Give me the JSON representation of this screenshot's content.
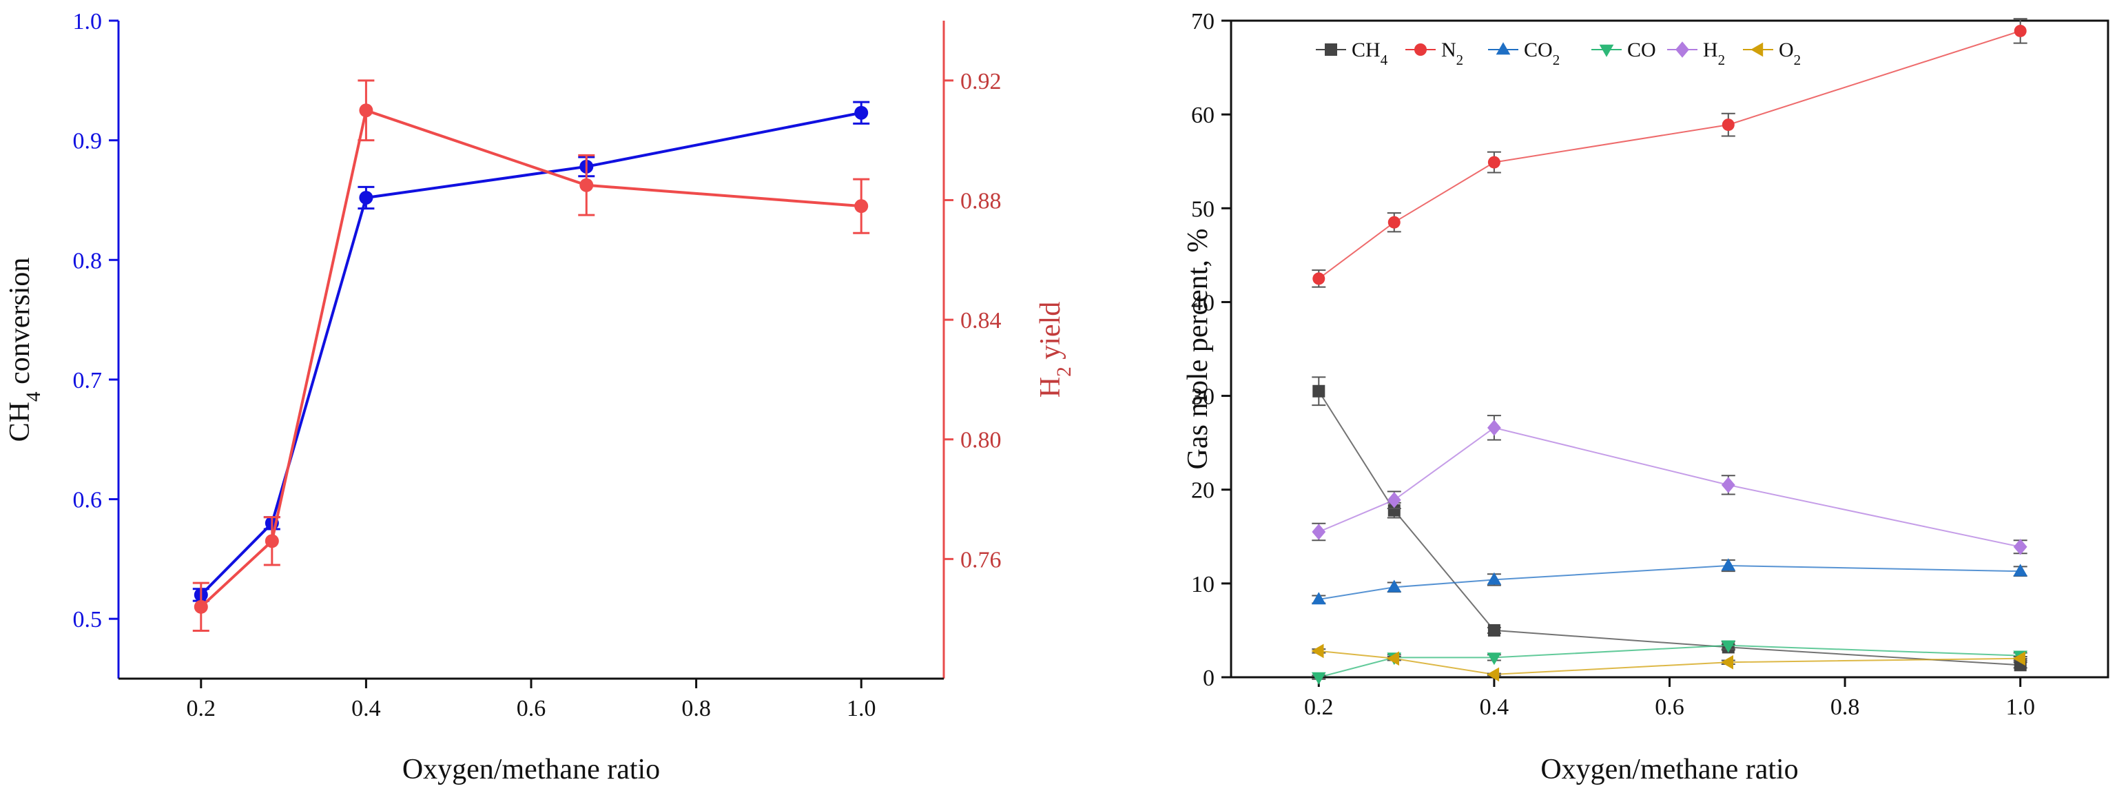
{
  "chart_data": [
    {
      "type": "line",
      "id": "left",
      "x": [
        0.2,
        0.286,
        0.4,
        0.667,
        1.0
      ],
      "xlabel": "Oxygen/methane ratio",
      "xlim": [
        0.1,
        1.1
      ],
      "xticks": [
        0.2,
        0.4,
        0.6,
        0.8,
        1.0
      ],
      "xtick_labels": [
        "0.2",
        "0.4",
        "0.6",
        "0.8",
        "1.0"
      ],
      "left_axis": {
        "label_main": "CH",
        "label_sub": "4",
        "label_rest": " conversion",
        "color": "#1010e0",
        "ylim": [
          0.45,
          1.0
        ],
        "ticks": [
          0.5,
          0.6,
          0.7,
          0.8,
          0.9,
          1.0
        ],
        "tick_labels": [
          "0.5",
          "0.6",
          "0.7",
          "0.8",
          "0.9",
          "1.0"
        ]
      },
      "right_axis": {
        "label_main": "H",
        "label_sub": "2",
        "label_rest": " yield",
        "color": "#c23b3b",
        "ylim": [
          0.72,
          0.94
        ],
        "ticks": [
          0.76,
          0.8,
          0.84,
          0.88,
          0.92
        ],
        "tick_labels": [
          "0.76",
          "0.80",
          "0.84",
          "0.88",
          "0.92"
        ]
      },
      "series": [
        {
          "name": "CH4 conversion",
          "axis": "left",
          "color": "#1010e0",
          "values": [
            0.52,
            0.58,
            0.852,
            0.878,
            0.923
          ],
          "errors": [
            0.005,
            0.005,
            0.009,
            0.008,
            0.009
          ]
        },
        {
          "name": "H2 yield",
          "axis": "right",
          "color": "#ef4b4b",
          "values": [
            0.744,
            0.766,
            0.91,
            0.885,
            0.878
          ],
          "errors": [
            0.008,
            0.008,
            0.01,
            0.01,
            0.009
          ]
        }
      ]
    },
    {
      "type": "line",
      "id": "right",
      "x": [
        0.2,
        0.286,
        0.4,
        0.667,
        1.0
      ],
      "xlabel": "Oxygen/methane ratio",
      "ylabel": "Gas mole percent, %",
      "xlim": [
        0.1,
        1.1
      ],
      "ylim": [
        0,
        70
      ],
      "xticks": [
        0.2,
        0.4,
        0.6,
        0.8,
        1.0
      ],
      "xtick_labels": [
        "0.2",
        "0.4",
        "0.6",
        "0.8",
        "1.0"
      ],
      "yticks": [
        0,
        10,
        20,
        30,
        40,
        50,
        60,
        70
      ],
      "ytick_labels": [
        "0",
        "10",
        "20",
        "30",
        "40",
        "50",
        "60",
        "70"
      ],
      "legend_position": "top",
      "series": [
        {
          "name_main": "CH",
          "name_sub": "4",
          "marker": "square",
          "color": "#444444",
          "values": [
            30.5,
            17.8,
            5.0,
            3.2,
            1.3
          ],
          "errors": [
            1.5,
            0.8,
            0.3,
            0.3,
            0.3
          ]
        },
        {
          "name_main": "N",
          "name_sub": "2",
          "marker": "circle",
          "color": "#e8393b",
          "values": [
            42.5,
            48.5,
            54.9,
            58.9,
            68.9
          ],
          "errors": [
            0.9,
            1.0,
            1.1,
            1.2,
            1.3
          ]
        },
        {
          "name_main": "CO",
          "name_sub": "2",
          "marker": "triangle-up",
          "color": "#1f6fc4",
          "values": [
            8.3,
            9.6,
            10.4,
            11.9,
            11.3
          ],
          "errors": [
            0.4,
            0.5,
            0.6,
            0.6,
            0.5
          ]
        },
        {
          "name_main": "CO",
          "name_sub": "",
          "marker": "triangle-down",
          "color": "#2eb878",
          "values": [
            0.0,
            2.1,
            2.1,
            3.4,
            2.3
          ],
          "errors": [
            0.2,
            0.3,
            0.3,
            0.4,
            0.3
          ]
        },
        {
          "name_main": "H",
          "name_sub": "2",
          "marker": "diamond",
          "color": "#b17ce0",
          "values": [
            15.5,
            18.9,
            26.6,
            20.5,
            13.9
          ],
          "errors": [
            0.9,
            0.9,
            1.3,
            1.0,
            0.7
          ]
        },
        {
          "name_main": "O",
          "name_sub": "2",
          "marker": "triangle-left",
          "color": "#d1a00a",
          "values": [
            2.8,
            2.0,
            0.3,
            1.6,
            2.0
          ],
          "errors": [
            0.2,
            0.2,
            0.1,
            0.2,
            0.2
          ]
        }
      ]
    }
  ]
}
